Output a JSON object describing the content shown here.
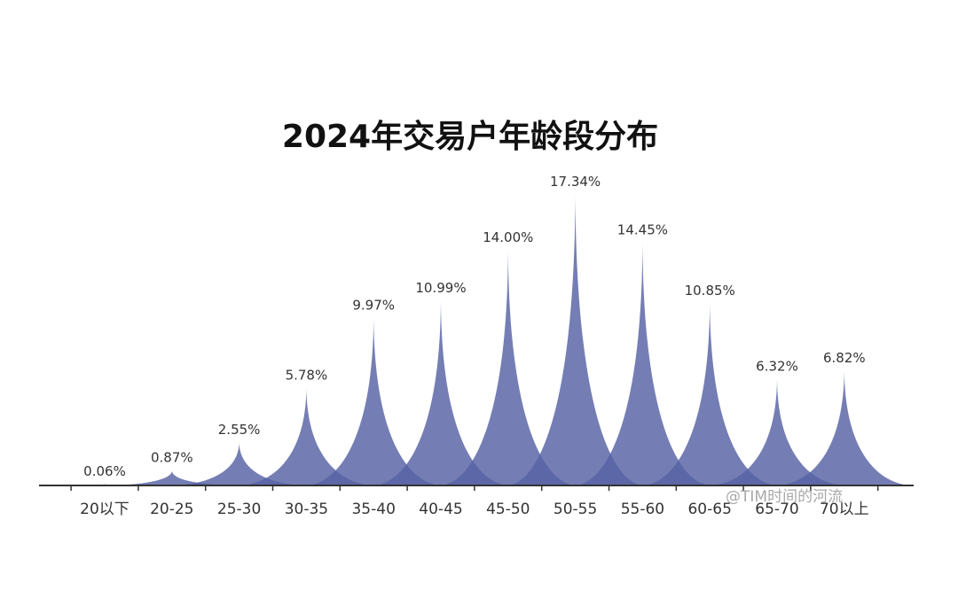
{
  "chart_data": {
    "type": "area",
    "title": "2024年交易户年龄段分布",
    "categories": [
      "20以下",
      "20-25",
      "25-30",
      "30-35",
      "35-40",
      "40-45",
      "45-50",
      "50-55",
      "55-60",
      "60-65",
      "65-70",
      "70以上"
    ],
    "values": [
      0.06,
      0.87,
      2.55,
      5.78,
      9.97,
      10.99,
      14.0,
      17.34,
      14.45,
      10.85,
      6.32,
      6.82
    ],
    "value_labels": [
      "0.06%",
      "0.87%",
      "2.55%",
      "5.78%",
      "9.97%",
      "10.99%",
      "14.00%",
      "17.34%",
      "14.45%",
      "10.85%",
      "6.32%",
      "6.82%"
    ],
    "unit": "%",
    "xlabel": "",
    "ylabel": "",
    "ylim": [
      0,
      17.34
    ],
    "grid": false,
    "legend": "none",
    "colors": {
      "fill": "#5562a3",
      "overlap": "#2e3a82",
      "axis": "#333333"
    }
  },
  "watermark": "@TIM时间的河流"
}
